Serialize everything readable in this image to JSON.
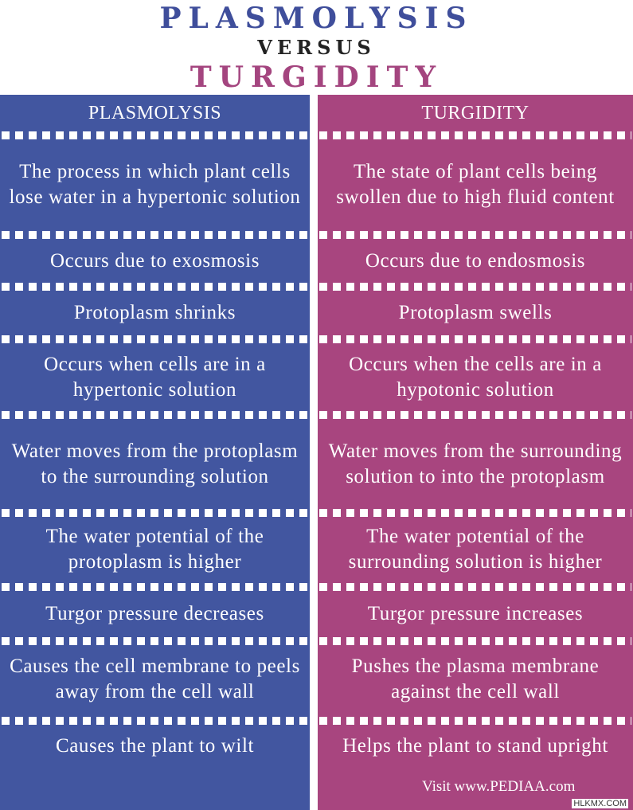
{
  "title": {
    "line1": "PLASMOLYSIS",
    "line2": "VERSUS",
    "line3": "TURGIDITY"
  },
  "columns": {
    "left_header": "PLASMOLYSIS",
    "right_header": "TURGIDITY"
  },
  "rows": [
    {
      "left": "The process in which plant cells lose water in a hypertonic solution",
      "right": "The state of plant cells being swollen due to high fluid content"
    },
    {
      "left": "Occurs due to exosmosis",
      "right": "Occurs due to endosmosis"
    },
    {
      "left": "Protoplasm shrinks",
      "right": "Protoplasm swells"
    },
    {
      "left": "Occurs when cells are in a hypertonic solution",
      "right": "Occurs when the cells are in a hypotonic solution"
    },
    {
      "left": "Water moves from the protoplasm to the surrounding solution",
      "right": "Water moves from the surrounding solution to into the protoplasm"
    },
    {
      "left": "The water potential of the protoplasm is higher",
      "right": "The water potential of the surrounding solution is higher"
    },
    {
      "left": "Turgor pressure decreases",
      "right": "Turgor pressure increases"
    },
    {
      "left": "Causes the cell membrane to peels away from the cell wall",
      "right": "Pushes the plasma membrane against the cell wall"
    },
    {
      "left": "Causes the plant to wilt",
      "right": "Helps the plant to stand upright"
    }
  ],
  "footer": "Visit www.PEDIAA.com",
  "watermark": "HLKMX.COM",
  "colors": {
    "plasmolysis": "#4256a0",
    "turgidity": "#a8457f",
    "title_blue": "#3f4e9b",
    "title_pink": "#a4457f"
  }
}
